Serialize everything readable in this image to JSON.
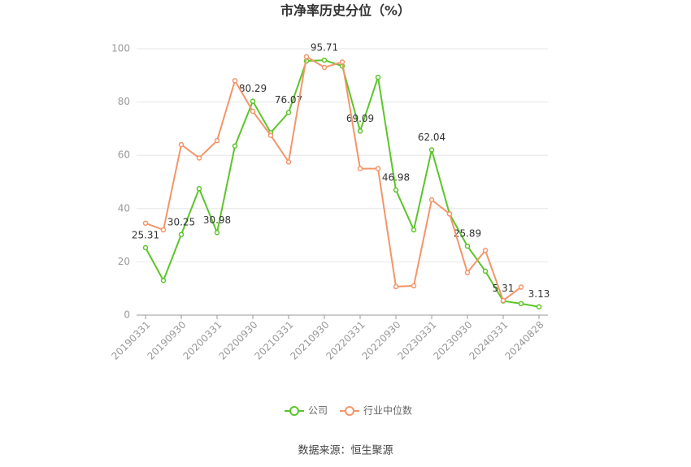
{
  "chart_data": {
    "type": "line",
    "title": "市净率历史分位（%）",
    "categories": [
      "20190331",
      null,
      "20190930",
      null,
      "20200331",
      null,
      "20200930",
      null,
      "20210331",
      null,
      "20210930",
      null,
      "20220331",
      null,
      "20220930",
      null,
      "20230331",
      null,
      "20230930",
      null,
      "20240331",
      null,
      "20240828"
    ],
    "series": [
      {
        "name": "公司",
        "color": "#5cc52a",
        "values": [
          25.31,
          13,
          30.25,
          47.5,
          30.98,
          63.5,
          80.29,
          68.5,
          76.07,
          95.4,
          95.71,
          93.5,
          69.09,
          89.3,
          46.98,
          32,
          62.04,
          38,
          25.89,
          16.5,
          5.31,
          4.3,
          3.13
        ],
        "value_labels": [
          "25.31",
          null,
          "30.25",
          null,
          "30.98",
          null,
          "80.29",
          null,
          "76.07",
          null,
          "95.71",
          null,
          "69.09",
          null,
          "46.98",
          null,
          "62.04",
          null,
          "25.89",
          null,
          "5.31",
          null,
          "3.13"
        ]
      },
      {
        "name": "行业中位数",
        "color": "#f4956a",
        "values": [
          34.5,
          32,
          64,
          59,
          65.5,
          88,
          76.5,
          67.5,
          57.5,
          97,
          93,
          95,
          55,
          55,
          10.7,
          11,
          43.3,
          38,
          16,
          24.3,
          5.5,
          10.5,
          null
        ]
      }
    ],
    "ylim": [
      0,
      100
    ],
    "yticks": [
      0,
      20,
      40,
      60,
      80,
      100
    ],
    "grid": true,
    "legend": "bottom",
    "source": "数据来源：恒生聚源"
  }
}
